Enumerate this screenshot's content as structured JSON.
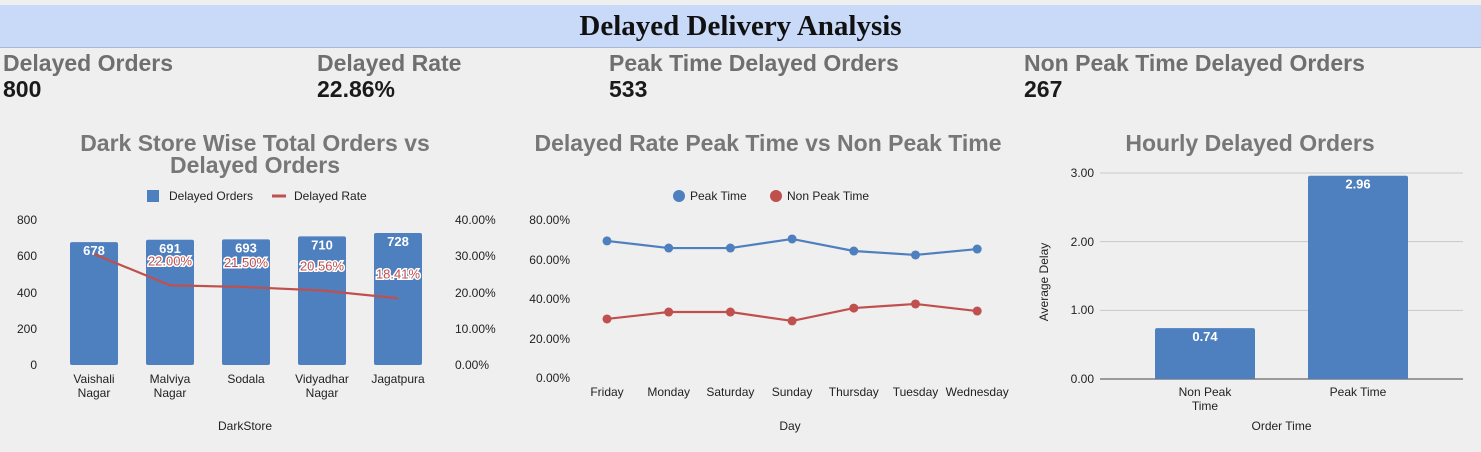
{
  "header": {
    "title": "Delayed Delivery Analysis"
  },
  "kpis": [
    {
      "label": "Delayed Orders",
      "value": "800"
    },
    {
      "label": "Delayed Rate",
      "value": "22.86%"
    },
    {
      "label": "Peak Time Delayed Orders",
      "value": "533"
    },
    {
      "label": "Non Peak Time Delayed Orders",
      "value": "267"
    }
  ],
  "chart_data": [
    {
      "type": "combo",
      "title": "Dark Store Wise Total Orders vs Delayed Orders",
      "xlabel": "DarkStore",
      "categories": [
        "Vaishali Nagar",
        "Malviya Nagar",
        "Sodala",
        "Vidyadhar Nagar",
        "Jagatpura"
      ],
      "series": [
        {
          "name": "Delayed Orders",
          "type": "bar",
          "color": "#4e7fbe",
          "values": [
            678,
            691,
            693,
            710,
            728
          ]
        },
        {
          "name": "Delayed Rate",
          "type": "line",
          "axis": "y2",
          "color": "#c0504d",
          "values": [
            30.6,
            22,
            21.5,
            20.56,
            18.41
          ],
          "value_labels": [
            null,
            "22.00%",
            "21.50%",
            "20.56%",
            "18.41%"
          ]
        }
      ],
      "ylim": [
        0,
        800
      ],
      "yticks": [
        0,
        200,
        400,
        600,
        800
      ],
      "y2lim": [
        0,
        40
      ],
      "y2ticks": [
        {
          "value": 0,
          "label": "0.00%"
        },
        {
          "value": 10,
          "label": "10.00%"
        },
        {
          "value": 20,
          "label": "20.00%"
        },
        {
          "value": 30,
          "label": "30.00%"
        },
        {
          "value": 40,
          "label": "40.00%"
        }
      ],
      "legend": "top"
    },
    {
      "type": "line",
      "title": "Delayed Rate Peak Time vs Non Peak Time",
      "xlabel": "Day",
      "categories": [
        "Friday",
        "Monday",
        "Saturday",
        "Sunday",
        "Thursday",
        "Tuesday",
        "Wednesday"
      ],
      "series": [
        {
          "name": "Peak Time",
          "color": "#4e7fbe",
          "values": [
            69.4,
            65.8,
            65.8,
            70.4,
            64.3,
            62.3,
            65.3
          ]
        },
        {
          "name": "Non Peak Time",
          "color": "#c0504d",
          "values": [
            29.9,
            33.4,
            33.4,
            28.9,
            35.4,
            37.5,
            33.9
          ]
        }
      ],
      "ylim": [
        0,
        80
      ],
      "yticks": [
        {
          "value": 0,
          "label": "0.00%"
        },
        {
          "value": 20,
          "label": "20.00%"
        },
        {
          "value": 40,
          "label": "40.00%"
        },
        {
          "value": 60,
          "label": "60.00%"
        },
        {
          "value": 80,
          "label": "80.00%"
        }
      ],
      "legend": "top"
    },
    {
      "type": "bar",
      "title": "Hourly Delayed Orders",
      "xlabel": "Order Time",
      "ylabel": "Average Delay",
      "categories": [
        "Non Peak Time",
        "Peak Time"
      ],
      "values": [
        0.74,
        2.96
      ],
      "color": "#4e7fbe",
      "ylim": [
        0,
        3
      ],
      "yticks": [
        {
          "value": 0,
          "label": "0.00"
        },
        {
          "value": 1,
          "label": "1.00"
        },
        {
          "value": 2,
          "label": "2.00"
        },
        {
          "value": 3,
          "label": "3.00"
        }
      ],
      "grid": true
    }
  ]
}
